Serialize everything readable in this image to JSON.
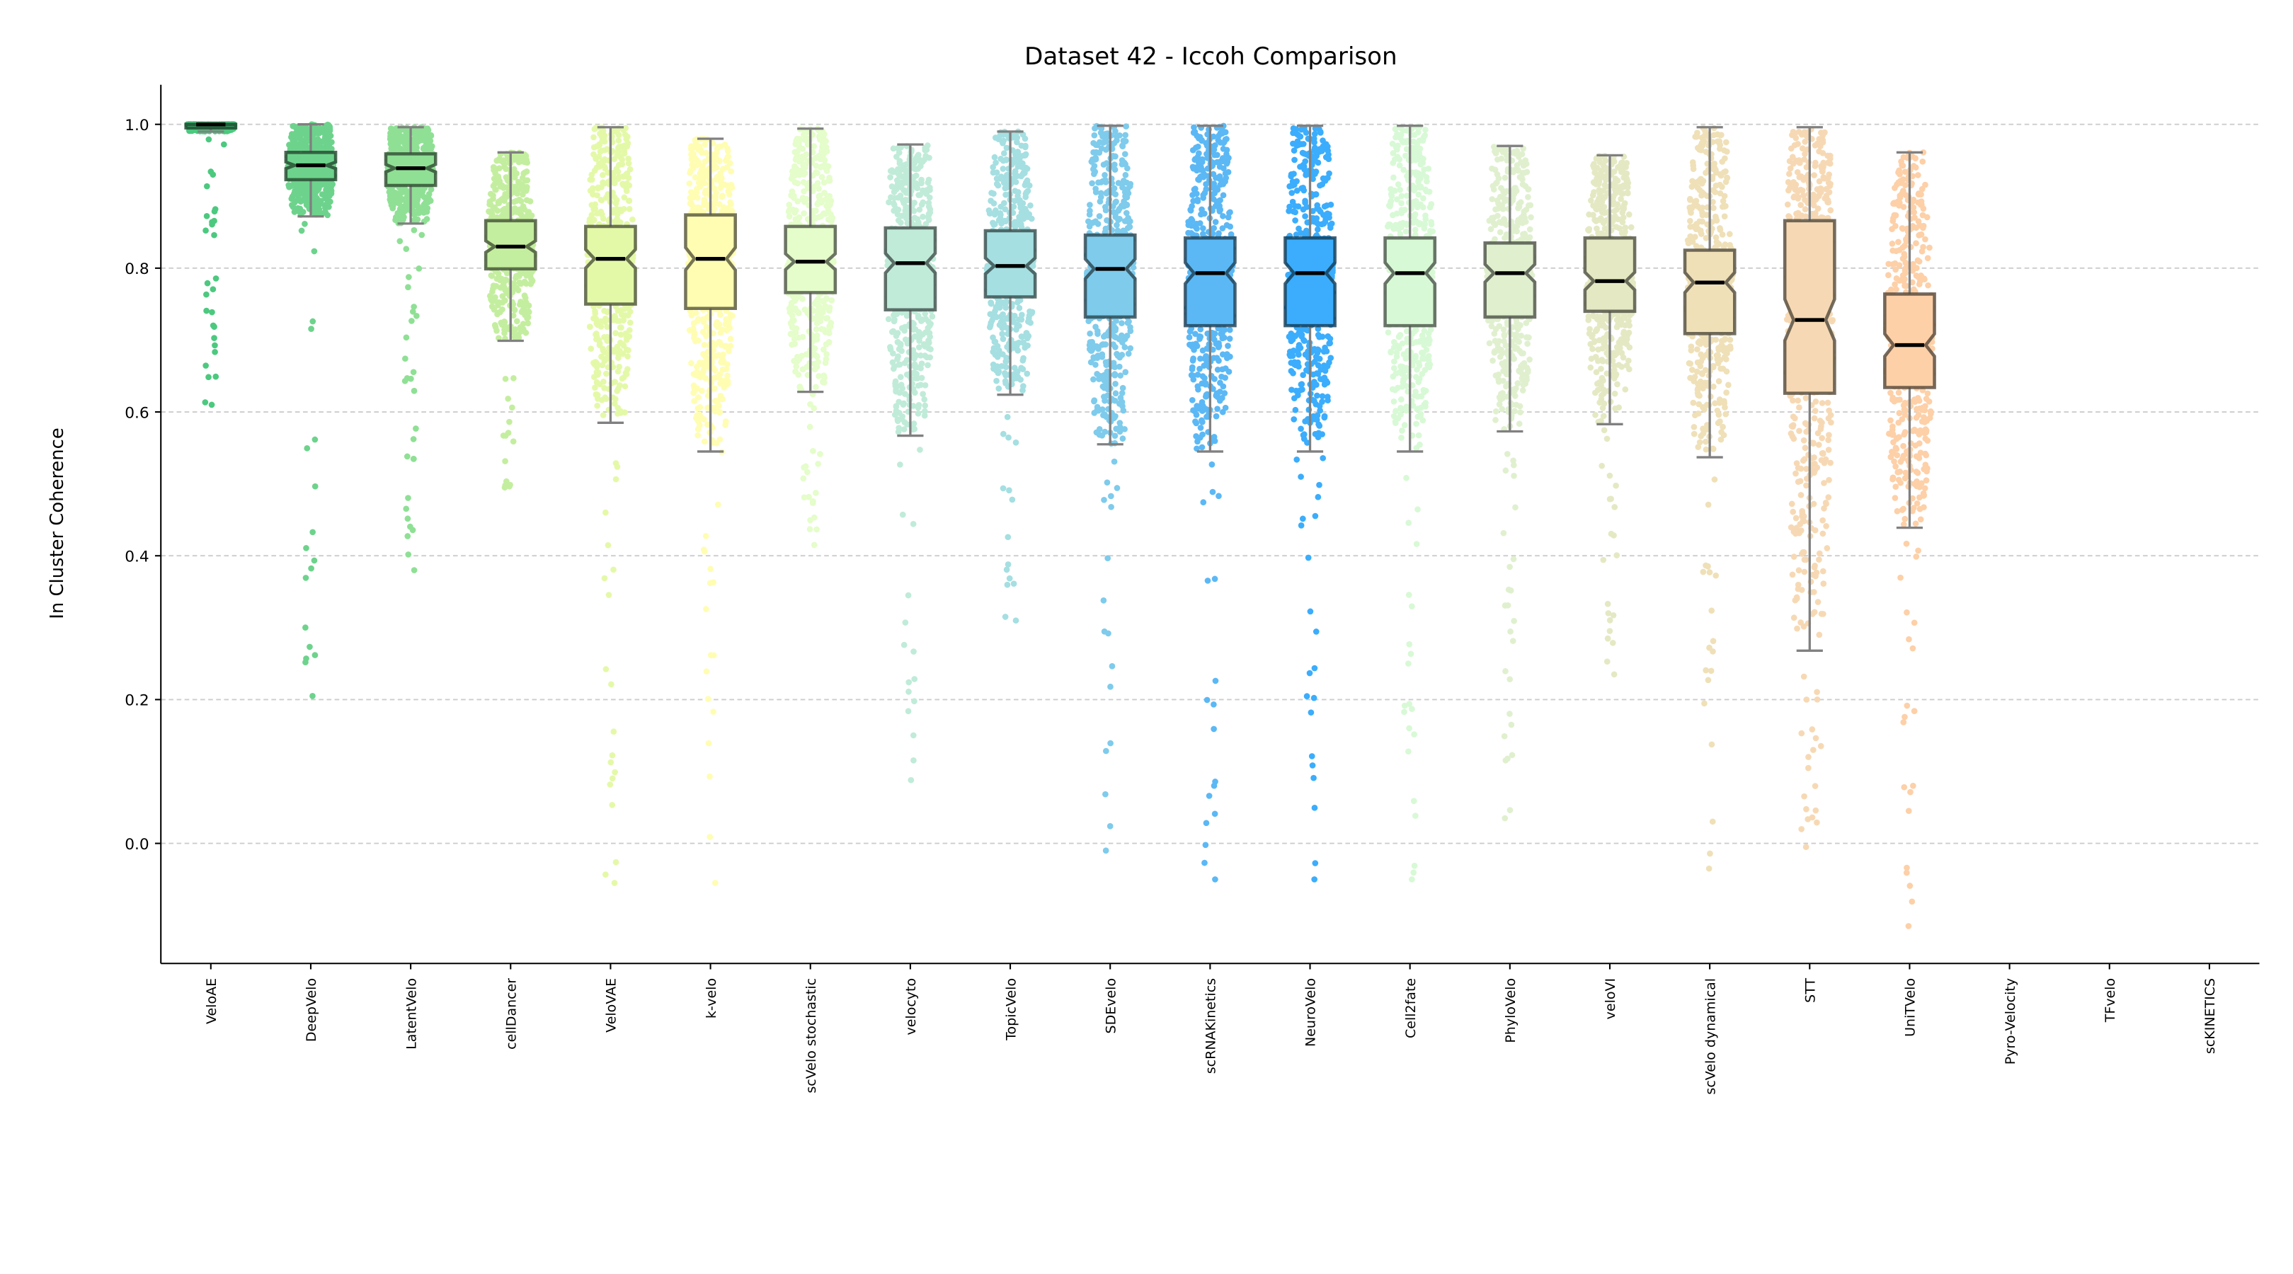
{
  "chart_data": {
    "type": "box",
    "subtype": "notched box plot with jittered strip points",
    "title": "Dataset 42 - Iccoh Comparison",
    "xlabel": "",
    "ylabel": "In Cluster Coherence",
    "ylim": [
      -0.167,
      1.055
    ],
    "yticks": [
      0.0,
      0.2,
      0.4,
      0.6,
      0.8,
      1.0
    ],
    "ytick_labels": [
      "0.0",
      "0.2",
      "0.4",
      "0.6",
      "0.8",
      "1.0"
    ],
    "grid": "horizontal dashed",
    "legend": "none",
    "categories": [
      "VeloAE",
      "DeepVelo",
      "LatentVelo",
      "cellDancer",
      "VeloVAE",
      "k-velo",
      "scVelo stochastic",
      "velocyto",
      "TopicVelo",
      "SDEvelo",
      "scRNAKinetics",
      "NeuroVelo",
      "Cell2fate",
      "PhyloVelo",
      "veloVI",
      "scVelo dynamical",
      "STT",
      "UniTVelo",
      "Pyro-Velocity",
      "TFvelo",
      "scKINETICS"
    ],
    "series": [
      {
        "name": "VeloAE",
        "color": "#4cc97f",
        "whisker_low": 0.99,
        "q1": 0.995,
        "median": 1.0,
        "q3": 1.0,
        "whisker_high": 1.0,
        "min_point": 0.61
      },
      {
        "name": "DeepVelo",
        "color": "#6dd38c",
        "whisker_low": 0.872,
        "q1": 0.923,
        "median": 0.943,
        "q3": 0.961,
        "whisker_high": 1.0,
        "min_point": 0.205
      },
      {
        "name": "LatentVelo",
        "color": "#8fe095",
        "whisker_low": 0.862,
        "q1": 0.915,
        "median": 0.939,
        "q3": 0.959,
        "whisker_high": 0.996,
        "min_point": 0.38
      },
      {
        "name": "cellDancer",
        "color": "#c4ee9f",
        "whisker_low": 0.699,
        "q1": 0.799,
        "median": 0.83,
        "q3": 0.866,
        "whisker_high": 0.961,
        "min_point": 0.495
      },
      {
        "name": "VeloVAE",
        "color": "#e4f9a8",
        "whisker_low": 0.585,
        "q1": 0.75,
        "median": 0.813,
        "q3": 0.858,
        "whisker_high": 0.996,
        "min_point": -0.055
      },
      {
        "name": "k-velo",
        "color": "#fffdb2",
        "whisker_low": 0.545,
        "q1": 0.744,
        "median": 0.813,
        "q3": 0.874,
        "whisker_high": 0.98,
        "min_point": -0.055
      },
      {
        "name": "scVelo stochastic",
        "color": "#e4fdca",
        "whisker_low": 0.628,
        "q1": 0.766,
        "median": 0.809,
        "q3": 0.858,
        "whisker_high": 0.994,
        "min_point": 0.415
      },
      {
        "name": "velocyto",
        "color": "#c0ebd9",
        "whisker_low": 0.567,
        "q1": 0.742,
        "median": 0.807,
        "q3": 0.856,
        "whisker_high": 0.972,
        "min_point": 0.088
      },
      {
        "name": "TopicVelo",
        "color": "#a5dfe1",
        "whisker_low": 0.624,
        "q1": 0.76,
        "median": 0.803,
        "q3": 0.852,
        "whisker_high": 0.99,
        "min_point": 0.31
      },
      {
        "name": "SDEvelo",
        "color": "#7ecbec",
        "whisker_low": 0.555,
        "q1": 0.732,
        "median": 0.799,
        "q3": 0.846,
        "whisker_high": 0.998,
        "min_point": -0.01
      },
      {
        "name": "scRNAKinetics",
        "color": "#5bb8f5",
        "whisker_low": 0.545,
        "q1": 0.72,
        "median": 0.793,
        "q3": 0.842,
        "whisker_high": 0.998,
        "min_point": -0.05
      },
      {
        "name": "NeuroVelo",
        "color": "#3badfc",
        "whisker_low": 0.545,
        "q1": 0.72,
        "median": 0.793,
        "q3": 0.842,
        "whisker_high": 0.998,
        "min_point": -0.05
      },
      {
        "name": "Cell2fate",
        "color": "#d8f9d5",
        "whisker_low": 0.545,
        "q1": 0.72,
        "median": 0.793,
        "q3": 0.842,
        "whisker_high": 0.998,
        "min_point": -0.05
      },
      {
        "name": "PhyloVelo",
        "color": "#e0f0cf",
        "whisker_low": 0.573,
        "q1": 0.732,
        "median": 0.793,
        "q3": 0.835,
        "whisker_high": 0.97,
        "min_point": 0.035
      },
      {
        "name": "veloVI",
        "color": "#e5e9c3",
        "whisker_low": 0.583,
        "q1": 0.74,
        "median": 0.782,
        "q3": 0.842,
        "whisker_high": 0.957,
        "min_point": 0.235
      },
      {
        "name": "scVelo dynamical",
        "color": "#efe0b8",
        "whisker_low": 0.537,
        "q1": 0.709,
        "median": 0.78,
        "q3": 0.825,
        "whisker_high": 0.996,
        "min_point": -0.035
      },
      {
        "name": "STT",
        "color": "#f6d9b4",
        "whisker_low": 0.268,
        "q1": 0.626,
        "median": 0.728,
        "q3": 0.866,
        "whisker_high": 0.996,
        "min_point": -0.005
      },
      {
        "name": "UniTVelo",
        "color": "#fdd0a8",
        "whisker_low": 0.439,
        "q1": 0.634,
        "median": 0.693,
        "q3": 0.764,
        "whisker_high": 0.961,
        "min_point": -0.115
      },
      {
        "name": "Pyro-Velocity",
        "color": null,
        "whisker_low": null,
        "q1": null,
        "median": null,
        "q3": null,
        "whisker_high": null,
        "min_point": null
      },
      {
        "name": "TFvelo",
        "color": null,
        "whisker_low": null,
        "q1": null,
        "median": null,
        "q3": null,
        "whisker_high": null,
        "min_point": null
      },
      {
        "name": "scKINETICS",
        "color": null,
        "whisker_low": null,
        "q1": null,
        "median": null,
        "q3": null,
        "whisker_high": null,
        "min_point": null
      }
    ]
  }
}
